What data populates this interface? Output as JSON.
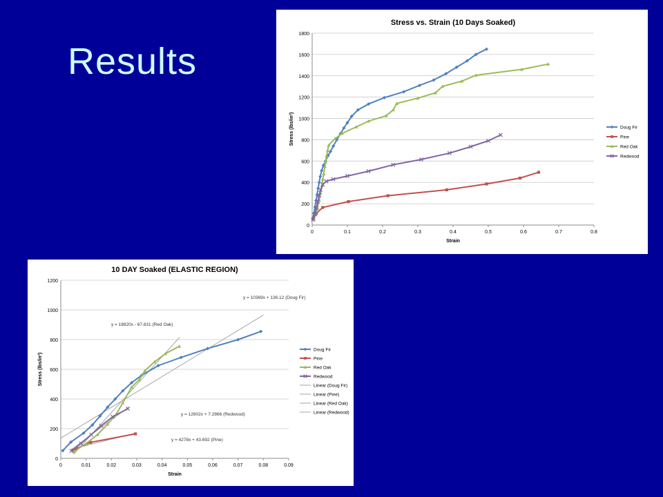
{
  "slide": {
    "title": "Results"
  },
  "colors": {
    "background": "#000099",
    "title": "#ccffff",
    "doug_fir": "#4f81bd",
    "pine": "#c0504d",
    "red_oak": "#9bbb59",
    "redwood": "#8064a2",
    "trendline": "#a6a6a6"
  },
  "chart_data": [
    {
      "type": "line",
      "title": "Stress vs. Strain (10 Days Soaked)",
      "xlabel": "Strain",
      "ylabel": "Stress (lbs/in²)",
      "xlim": [
        0,
        0.8
      ],
      "ylim": [
        0,
        1800
      ],
      "xticks": [
        "0",
        "0.1",
        "0.2",
        "0.3",
        "0.4",
        "0.5",
        "0.6",
        "0.7",
        "0.8"
      ],
      "yticks": [
        "0",
        "200",
        "400",
        "600",
        "800",
        "1000",
        "1200",
        "1400",
        "1600",
        "1800"
      ],
      "grid": true,
      "legend_position": "right",
      "series": [
        {
          "name": "Doug Fir",
          "marker": "diamond",
          "color": "#4f81bd",
          "points": [
            [
              0.002,
              55
            ],
            [
              0.005,
              110
            ],
            [
              0.008,
              170
            ],
            [
              0.011,
              230
            ],
            [
              0.014,
              285
            ],
            [
              0.017,
              345
            ],
            [
              0.02,
              400
            ],
            [
              0.023,
              455
            ],
            [
              0.027,
              510
            ],
            [
              0.032,
              560
            ],
            [
              0.038,
              600
            ],
            [
              0.045,
              650
            ],
            [
              0.052,
              690
            ],
            [
              0.06,
              740
            ],
            [
              0.07,
              800
            ],
            [
              0.08,
              855
            ],
            [
              0.09,
              910
            ],
            [
              0.1,
              960
            ],
            [
              0.112,
              1020
            ],
            [
              0.13,
              1080
            ],
            [
              0.16,
              1135
            ],
            [
              0.205,
              1195
            ],
            [
              0.26,
              1250
            ],
            [
              0.305,
              1310
            ],
            [
              0.345,
              1360
            ],
            [
              0.38,
              1420
            ],
            [
              0.41,
              1480
            ],
            [
              0.44,
              1540
            ],
            [
              0.465,
              1600
            ],
            [
              0.495,
              1650
            ]
          ]
        },
        {
          "name": "Pine",
          "marker": "square",
          "color": "#c0504d",
          "points": [
            [
              0.002,
              60
            ],
            [
              0.012,
              110
            ],
            [
              0.03,
              165
            ],
            [
              0.103,
              220
            ],
            [
              0.215,
              275
            ],
            [
              0.382,
              330
            ],
            [
              0.495,
              385
            ],
            [
              0.59,
              440
            ],
            [
              0.643,
              495
            ]
          ]
        },
        {
          "name": "Red Oak",
          "marker": "triangle",
          "color": "#9bbb59",
          "points": [
            [
              0.005,
              55
            ],
            [
              0.01,
              100
            ],
            [
              0.015,
              160
            ],
            [
              0.02,
              230
            ],
            [
              0.024,
              300
            ],
            [
              0.028,
              370
            ],
            [
              0.03,
              430
            ],
            [
              0.033,
              480
            ],
            [
              0.036,
              550
            ],
            [
              0.038,
              590
            ],
            [
              0.041,
              650
            ],
            [
              0.044,
              700
            ],
            [
              0.047,
              750
            ],
            [
              0.065,
              810
            ],
            [
              0.085,
              860
            ],
            [
              0.125,
              920
            ],
            [
              0.16,
              975
            ],
            [
              0.21,
              1025
            ],
            [
              0.23,
              1080
            ],
            [
              0.24,
              1140
            ],
            [
              0.3,
              1190
            ],
            [
              0.35,
              1240
            ],
            [
              0.37,
              1300
            ],
            [
              0.425,
              1350
            ],
            [
              0.465,
              1405
            ],
            [
              0.595,
              1460
            ],
            [
              0.67,
              1510
            ]
          ]
        },
        {
          "name": "Redwood",
          "marker": "x",
          "color": "#8064a2",
          "points": [
            [
              0.003,
              50
            ],
            [
              0.008,
              100
            ],
            [
              0.012,
              160
            ],
            [
              0.016,
              220
            ],
            [
              0.02,
              280
            ],
            [
              0.024,
              330
            ],
            [
              0.03,
              380
            ],
            [
              0.04,
              410
            ],
            [
              0.06,
              430
            ],
            [
              0.1,
              460
            ],
            [
              0.16,
              505
            ],
            [
              0.23,
              565
            ],
            [
              0.31,
              615
            ],
            [
              0.39,
              675
            ],
            [
              0.45,
              735
            ],
            [
              0.5,
              790
            ],
            [
              0.535,
              845
            ]
          ]
        }
      ]
    },
    {
      "type": "scatter",
      "title": "10 DAY Soaked (ELASTIC REGION)",
      "xlabel": "Strain",
      "ylabel": "Stress (lbs/in²)",
      "xlim": [
        0,
        0.09
      ],
      "ylim": [
        0,
        1200
      ],
      "xticks": [
        "0",
        "0.01",
        "0.02",
        "0.03",
        "0.04",
        "0.05",
        "0.06",
        "0.07",
        "0.08",
        "0.09"
      ],
      "yticks": [
        "0",
        "200",
        "400",
        "600",
        "800",
        "1000",
        "1200"
      ],
      "grid": true,
      "legend_position": "right",
      "legend": [
        "Doug Fir",
        "Pine",
        "Red Oak",
        "Redwood",
        "Linear (Doug Fir)",
        "Linear (Pine)",
        "Linear (Red Oak)",
        "Linear (Redwood)"
      ],
      "series": [
        {
          "name": "Doug Fir",
          "marker": "diamond",
          "color": "#4f81bd",
          "points": [
            [
              0.0008,
              52
            ],
            [
              0.004,
              110
            ],
            [
              0.009,
              170
            ],
            [
              0.0125,
              225
            ],
            [
              0.0155,
              285
            ],
            [
              0.0185,
              345
            ],
            [
              0.0215,
              400
            ],
            [
              0.0245,
              455
            ],
            [
              0.028,
              510
            ],
            [
              0.032,
              560
            ],
            [
              0.0385,
              625
            ],
            [
              0.0475,
              680
            ],
            [
              0.058,
              740
            ],
            [
              0.07,
              800
            ],
            [
              0.079,
              855
            ]
          ]
        },
        {
          "name": "Pine",
          "marker": "square",
          "color": "#c0504d",
          "points": [
            [
              0.0048,
              55
            ],
            [
              0.0118,
              108
            ],
            [
              0.0295,
              165
            ]
          ]
        },
        {
          "name": "Red Oak",
          "marker": "triangle",
          "color": "#9bbb59",
          "points": [
            [
              0.0052,
              45
            ],
            [
              0.01,
              100
            ],
            [
              0.0145,
              160
            ],
            [
              0.0185,
              230
            ],
            [
              0.022,
              300
            ],
            [
              0.0245,
              375
            ],
            [
              0.028,
              480
            ],
            [
              0.031,
              530
            ],
            [
              0.0332,
              590
            ],
            [
              0.037,
              650
            ],
            [
              0.0413,
              705
            ],
            [
              0.0468,
              755
            ]
          ]
        },
        {
          "name": "Redwood",
          "marker": "x",
          "color": "#8064a2",
          "points": [
            [
              0.0042,
              50
            ],
            [
              0.008,
              100
            ],
            [
              0.012,
              160
            ],
            [
              0.016,
              220
            ],
            [
              0.0205,
              280
            ],
            [
              0.0265,
              335
            ]
          ]
        }
      ],
      "trendlines": [
        {
          "name": "Linear (Doug Fir)",
          "slope": 10369,
          "intercept": 136.12,
          "x_range": [
            0,
            0.08
          ],
          "label": "y = 10369x + 136.12 (Doug Fir)"
        },
        {
          "name": "Linear (Pine)",
          "slope": 4278,
          "intercept": 43.692,
          "x_range": [
            0.004,
            0.03
          ],
          "label": "y = 4278x + 43.692 (Pine)"
        },
        {
          "name": "Linear (Red Oak)",
          "slope": 18820,
          "intercept": -67.831,
          "x_range": [
            0.005,
            0.047
          ],
          "label": "y = 18820x - 67.831 (Red Oak)"
        },
        {
          "name": "Linear (Redwood)",
          "slope": 12602,
          "intercept": 7.2866,
          "x_range": [
            0.004,
            0.027
          ],
          "label": "y = 12602x + 7.2866 (Redwood)"
        }
      ]
    }
  ]
}
